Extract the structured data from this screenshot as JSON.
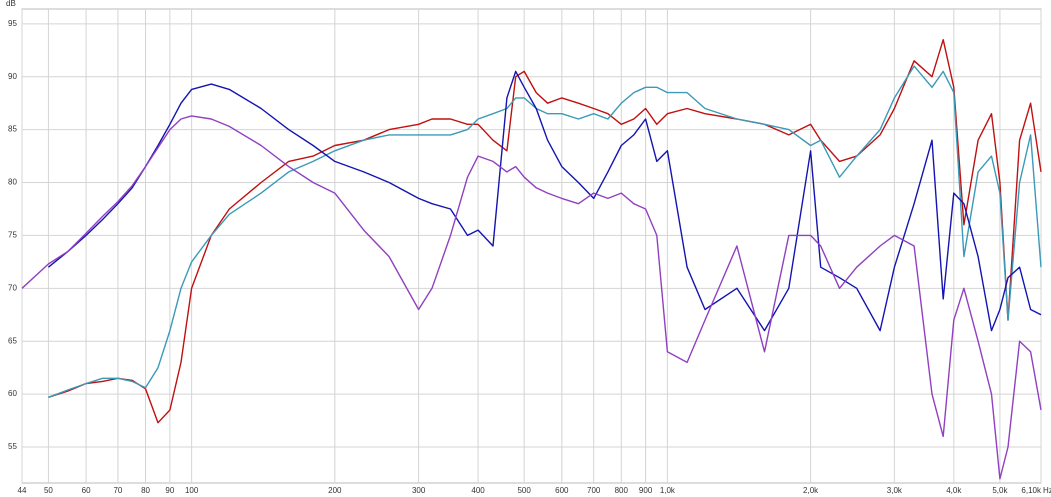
{
  "chart_data": {
    "type": "line",
    "y_label": "dB",
    "x_label": "Hz",
    "xscale": "log",
    "grid": true,
    "x": [
      44,
      50,
      55,
      60,
      65,
      70,
      75,
      80,
      85,
      90,
      95,
      100,
      110,
      120,
      140,
      160,
      180,
      200,
      230,
      260,
      300,
      320,
      350,
      380,
      400,
      430,
      460,
      480,
      500,
      530,
      560,
      600,
      650,
      700,
      750,
      800,
      850,
      900,
      950,
      1000,
      1100,
      1200,
      1400,
      1600,
      1800,
      2000,
      2100,
      2300,
      2500,
      2800,
      3000,
      3300,
      3600,
      3800,
      4000,
      4200,
      4500,
      4800,
      5000,
      5200,
      5500,
      5800,
      6100
    ],
    "series": [
      {
        "color": "#c01010",
        "values": [
          null,
          59.7,
          60.3,
          61,
          61.2,
          61.5,
          61.3,
          60.5,
          57.3,
          58.5,
          63,
          70,
          75,
          77.5,
          80,
          82,
          82.5,
          83.5,
          84,
          85,
          85.5,
          86,
          86,
          85.5,
          85.5,
          84,
          83,
          90,
          90.5,
          88.5,
          87.5,
          88,
          87.5,
          87,
          86.5,
          85.5,
          86,
          87,
          85.5,
          86.5,
          87,
          86.5,
          86,
          85.5,
          84.5,
          85.5,
          84,
          82,
          82.5,
          84.5,
          87,
          91.5,
          90,
          93.5,
          89,
          76,
          84,
          86.5,
          80,
          67,
          84,
          87.5,
          81
        ]
      },
      {
        "color": "#3a9ab8",
        "values": [
          null,
          59.7,
          60.4,
          61,
          61.5,
          61.5,
          61.2,
          60.6,
          62.5,
          66,
          70,
          72.5,
          75,
          77,
          79,
          81,
          82,
          83,
          84,
          84.5,
          84.5,
          84.5,
          84.5,
          85,
          86,
          86.5,
          87,
          88,
          88,
          87,
          86.5,
          86.5,
          86,
          86.5,
          86,
          87.5,
          88.5,
          89,
          89,
          88.5,
          88.5,
          87,
          86,
          85.5,
          85,
          83.5,
          84,
          80.5,
          82.5,
          85,
          88,
          91,
          89,
          90.5,
          88.5,
          73,
          81,
          82.5,
          79,
          67,
          80,
          84.5,
          72
        ]
      },
      {
        "color": "#1414b0",
        "values": [
          null,
          72,
          73.5,
          75,
          76.5,
          78,
          79.5,
          81.5,
          83.5,
          85.5,
          87.5,
          88.8,
          89.3,
          88.8,
          87,
          85,
          83.5,
          82,
          81,
          80,
          78.5,
          78,
          77.5,
          75,
          75.5,
          74,
          88,
          90.5,
          89,
          87,
          84,
          81.5,
          80,
          78.5,
          81,
          83.5,
          84.5,
          86,
          82,
          83,
          72,
          68,
          70,
          66,
          70,
          83,
          72,
          71,
          70,
          66,
          72,
          78,
          84,
          69,
          79,
          78,
          73,
          66,
          68,
          71,
          72,
          68,
          67.5
        ]
      },
      {
        "color": "#9040c0",
        "values": [
          70,
          72.3,
          73.5,
          75.2,
          76.8,
          78.2,
          79.7,
          81.5,
          83.3,
          85,
          86,
          86.3,
          86,
          85.3,
          83.5,
          81.5,
          80,
          79,
          75.5,
          73,
          68,
          70,
          75,
          80.5,
          82.5,
          82,
          81,
          81.5,
          80.5,
          79.5,
          79,
          78.5,
          78,
          79,
          78.5,
          79,
          78,
          77.5,
          75,
          64,
          63,
          67,
          74,
          64,
          75,
          75,
          74,
          70,
          72,
          74,
          75,
          74,
          60,
          56,
          67,
          70,
          65,
          60,
          52,
          55,
          65,
          64,
          58.5
        ]
      }
    ],
    "xlim": [
      44,
      6100
    ],
    "ylim": [
      51.6,
      96.4
    ],
    "xticks": [
      44,
      50,
      60,
      70,
      80,
      90,
      100,
      200,
      300,
      400,
      500,
      600,
      700,
      800,
      900,
      {
        "value": 1000,
        "label": "1,0k"
      },
      {
        "value": 2000,
        "label": "2,0k"
      },
      {
        "value": 3000,
        "label": "3,0k"
      },
      {
        "value": 4000,
        "label": "4,0k"
      },
      {
        "value": 5000,
        "label": "5,0k"
      },
      {
        "value": 6100,
        "label": "6,10k"
      }
    ],
    "yticks": [
      55,
      60,
      65,
      70,
      75,
      80,
      85,
      90,
      95
    ]
  }
}
